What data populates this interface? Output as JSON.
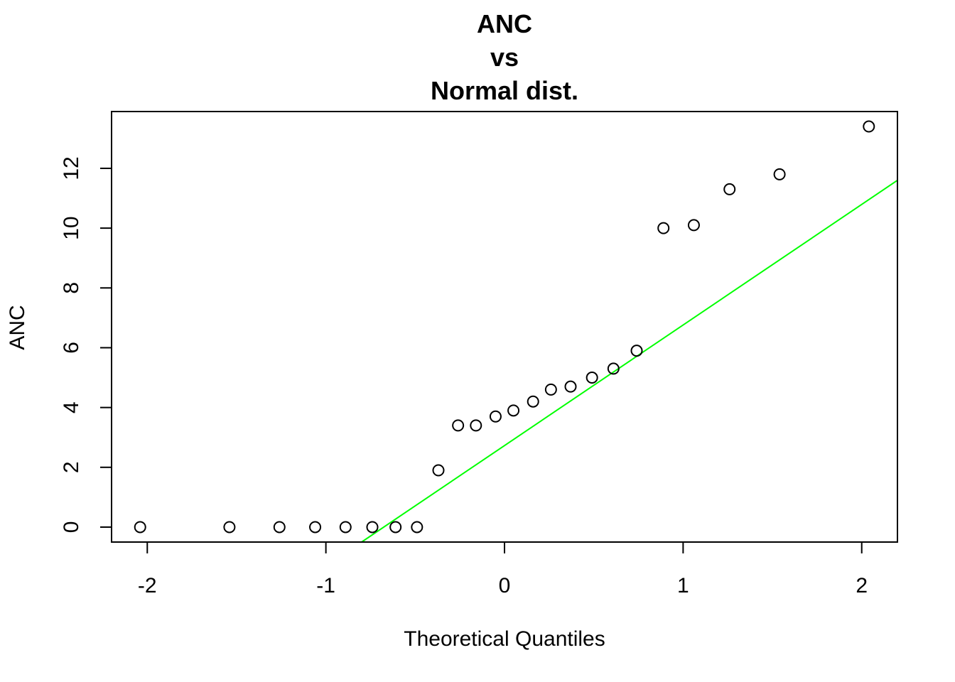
{
  "chart_data": {
    "type": "scatter",
    "title_lines": [
      "ANC",
      "vs",
      "Normal dist."
    ],
    "xlabel": "Theoretical Quantiles",
    "ylabel": "ANC",
    "xlim": [
      -2.2,
      2.2
    ],
    "ylim": [
      -0.5,
      13.9
    ],
    "x_ticks": [
      -2,
      -1,
      0,
      1,
      2
    ],
    "x_tick_labels": [
      "-2",
      "-1",
      "0",
      "1",
      "2"
    ],
    "y_ticks": [
      0,
      2,
      4,
      6,
      8,
      10,
      12
    ],
    "y_tick_labels": [
      "0",
      "2",
      "4",
      "6",
      "8",
      "10",
      "12"
    ],
    "grid": false,
    "series": [
      {
        "x": [
          -2.04,
          -1.54,
          -1.26,
          -1.06,
          -0.89,
          -0.74,
          -0.61,
          -0.49,
          -0.37,
          -0.26,
          -0.16,
          -0.05,
          0.05,
          0.16,
          0.26,
          0.37,
          0.49,
          0.61,
          0.74,
          0.89,
          1.06,
          1.26,
          1.54,
          2.04
        ],
        "y": [
          0,
          0,
          0,
          0,
          0,
          0,
          0,
          0,
          1.9,
          3.4,
          3.4,
          3.7,
          3.9,
          4.2,
          4.6,
          4.7,
          5.0,
          5.3,
          5.9,
          10.0,
          10.1,
          11.3,
          11.8,
          13.4
        ],
        "marker": "open-circle",
        "color": "#000000"
      }
    ],
    "reference_line": {
      "points": [
        [
          -0.8,
          -0.5
        ],
        [
          2.2,
          11.6
        ]
      ],
      "color": "#00ff00"
    }
  }
}
